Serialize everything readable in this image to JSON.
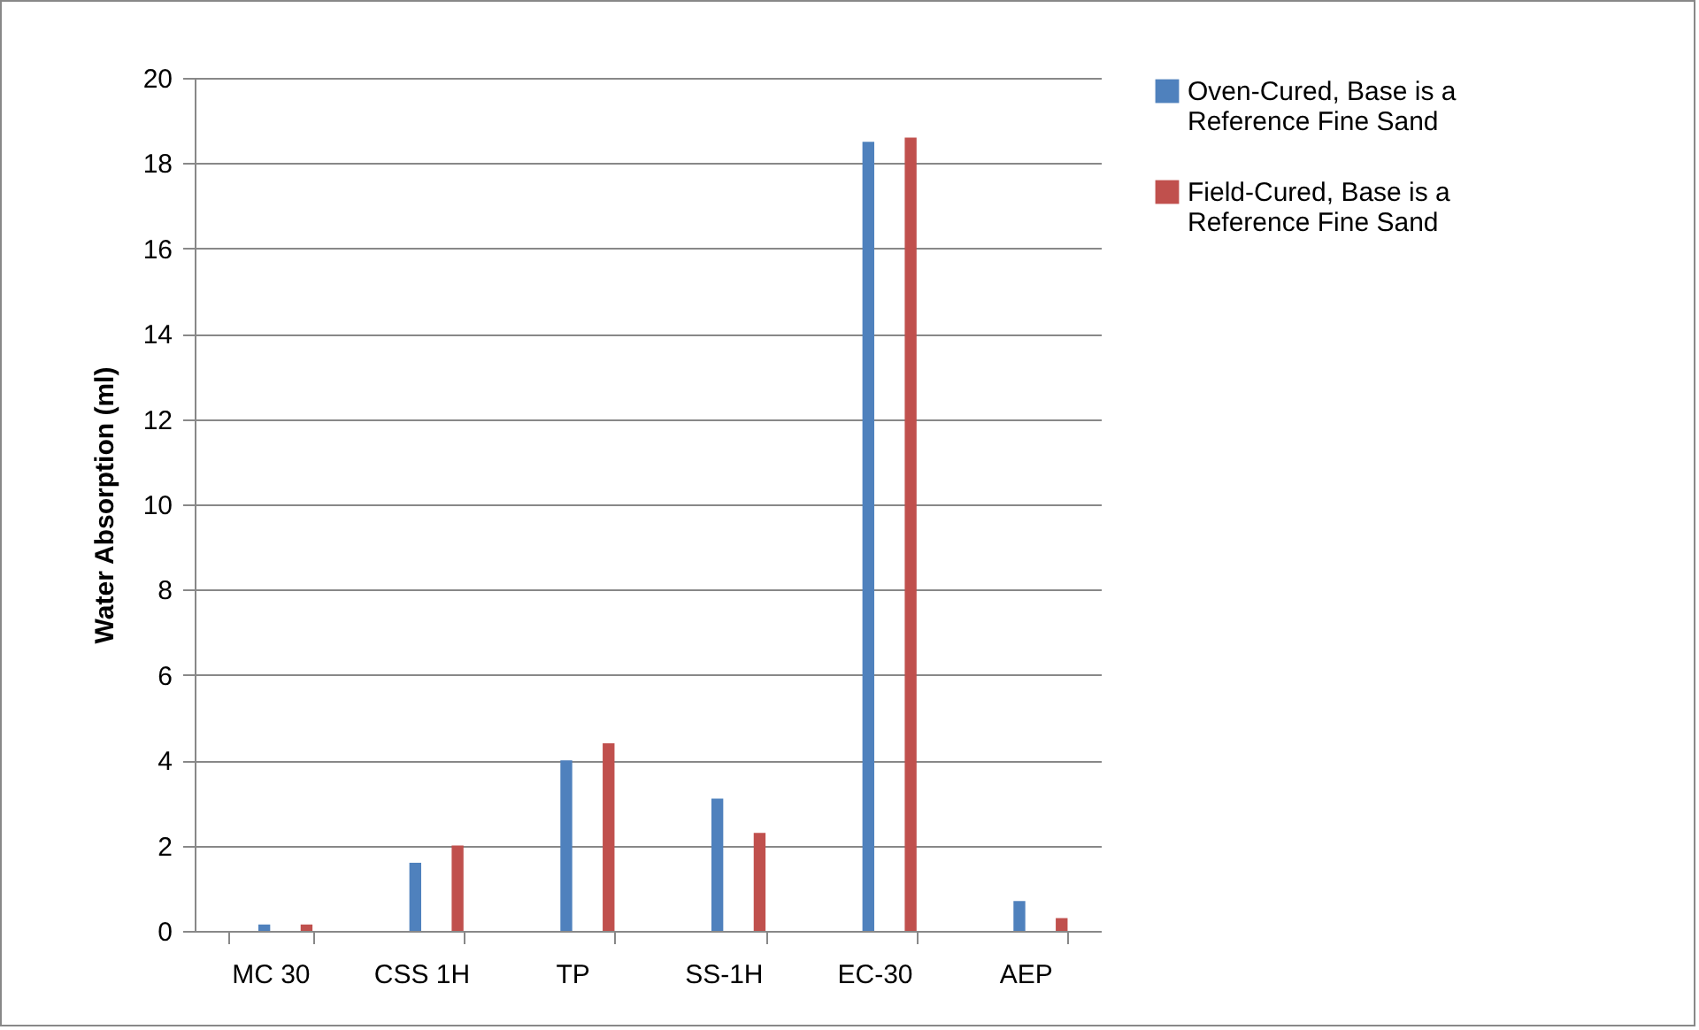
{
  "chart_data": {
    "type": "bar",
    "ylabel": "Water Absorption (ml)",
    "categories": [
      "MC 30",
      "CSS 1H",
      "TP",
      "SS-1H",
      "EC-30",
      "AEP"
    ],
    "series": [
      {
        "name": "Oven-Cured, Base is a Reference Fine Sand",
        "color": "#4f81bd",
        "values": [
          0.15,
          1.6,
          4.0,
          3.1,
          18.5,
          0.7
        ]
      },
      {
        "name": "Field-Cured, Base is a Reference Fine Sand",
        "color": "#c0504d",
        "values": [
          0.15,
          2.0,
          4.4,
          2.3,
          18.6,
          0.3
        ]
      }
    ],
    "ylim": [
      0,
      20
    ],
    "yticks": [
      0,
      2,
      4,
      6,
      8,
      10,
      12,
      14,
      16,
      18,
      20
    ],
    "grid": "y",
    "legend": "right"
  }
}
